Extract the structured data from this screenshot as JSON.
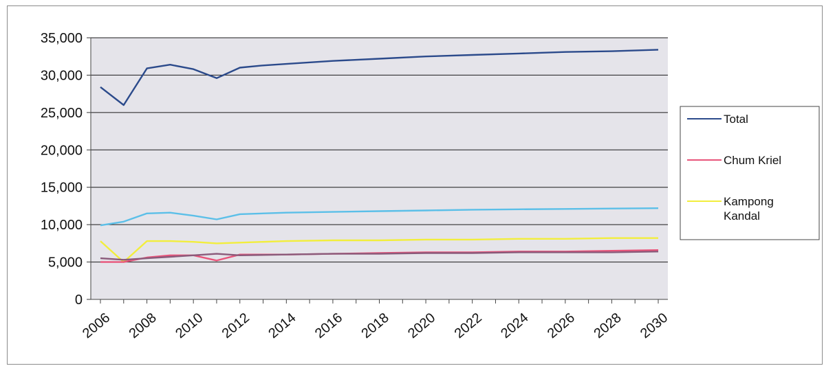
{
  "chart_data": {
    "type": "line",
    "title": "",
    "xlabel": "",
    "ylabel": "",
    "xlim": [
      2006,
      2030
    ],
    "ylim": [
      0,
      35000
    ],
    "y_ticks": [
      0,
      5000,
      10000,
      15000,
      20000,
      25000,
      30000,
      35000
    ],
    "y_tick_labels": [
      "0",
      "5,000",
      "10,000",
      "15,000",
      "20,000",
      "25,000",
      "30,000",
      "35,000"
    ],
    "x_ticks": [
      2006,
      2008,
      2010,
      2012,
      2014,
      2016,
      2018,
      2020,
      2022,
      2024,
      2026,
      2028,
      2030
    ],
    "x_tick_labels": [
      "2006",
      "2008",
      "2010",
      "2012",
      "2014",
      "2016",
      "2018",
      "2020",
      "2022",
      "2024",
      "2026",
      "2028",
      "2030"
    ],
    "grid": true,
    "legend_position": "right",
    "legend_entries": [
      "Total",
      "Chum Kriel",
      "Kampong Kandal"
    ],
    "series": [
      {
        "name": "Total",
        "color": "#2b4a8b",
        "x": [
          2006,
          2007,
          2008,
          2009,
          2010,
          2011,
          2012,
          2013,
          2014,
          2016,
          2018,
          2020,
          2022,
          2024,
          2026,
          2028,
          2030
        ],
        "y": [
          28400,
          26000,
          30900,
          31400,
          30800,
          29600,
          31000,
          31300,
          31500,
          31900,
          32200,
          32500,
          32700,
          32900,
          33100,
          33200,
          33400
        ]
      },
      {
        "name": "",
        "color": "#5bbfe8",
        "x": [
          2006,
          2007,
          2008,
          2009,
          2010,
          2011,
          2012,
          2014,
          2016,
          2018,
          2020,
          2022,
          2024,
          2026,
          2028,
          2030
        ],
        "y": [
          9900,
          10400,
          11500,
          11600,
          11200,
          10700,
          11400,
          11600,
          11700,
          11800,
          11900,
          12000,
          12050,
          12100,
          12150,
          12200
        ]
      },
      {
        "name": "Kampong Kandal",
        "color": "#f2ee3c",
        "x": [
          2006,
          2007,
          2008,
          2009,
          2010,
          2011,
          2012,
          2014,
          2016,
          2018,
          2020,
          2022,
          2024,
          2026,
          2028,
          2030
        ],
        "y": [
          7800,
          5000,
          7800,
          7800,
          7700,
          7500,
          7600,
          7800,
          7900,
          7900,
          8000,
          8000,
          8100,
          8100,
          8200,
          8200
        ]
      },
      {
        "name": "Chum Kriel",
        "color": "#e8547a",
        "x": [
          2006,
          2007,
          2008,
          2009,
          2010,
          2011,
          2012,
          2014,
          2016,
          2018,
          2020,
          2022,
          2024,
          2026,
          2028,
          2030
        ],
        "y": [
          5000,
          5000,
          5600,
          5900,
          5900,
          5200,
          6000,
          6000,
          6100,
          6200,
          6300,
          6300,
          6400,
          6400,
          6500,
          6600
        ]
      },
      {
        "name": "",
        "color": "#8a5a7a",
        "x": [
          2006,
          2007,
          2008,
          2009,
          2010,
          2011,
          2012,
          2014,
          2016,
          2018,
          2020,
          2022,
          2024,
          2026,
          2028,
          2030
        ],
        "y": [
          5500,
          5300,
          5500,
          5700,
          5900,
          6100,
          5900,
          6000,
          6100,
          6100,
          6200,
          6200,
          6300,
          6300,
          6300,
          6400
        ]
      }
    ]
  }
}
